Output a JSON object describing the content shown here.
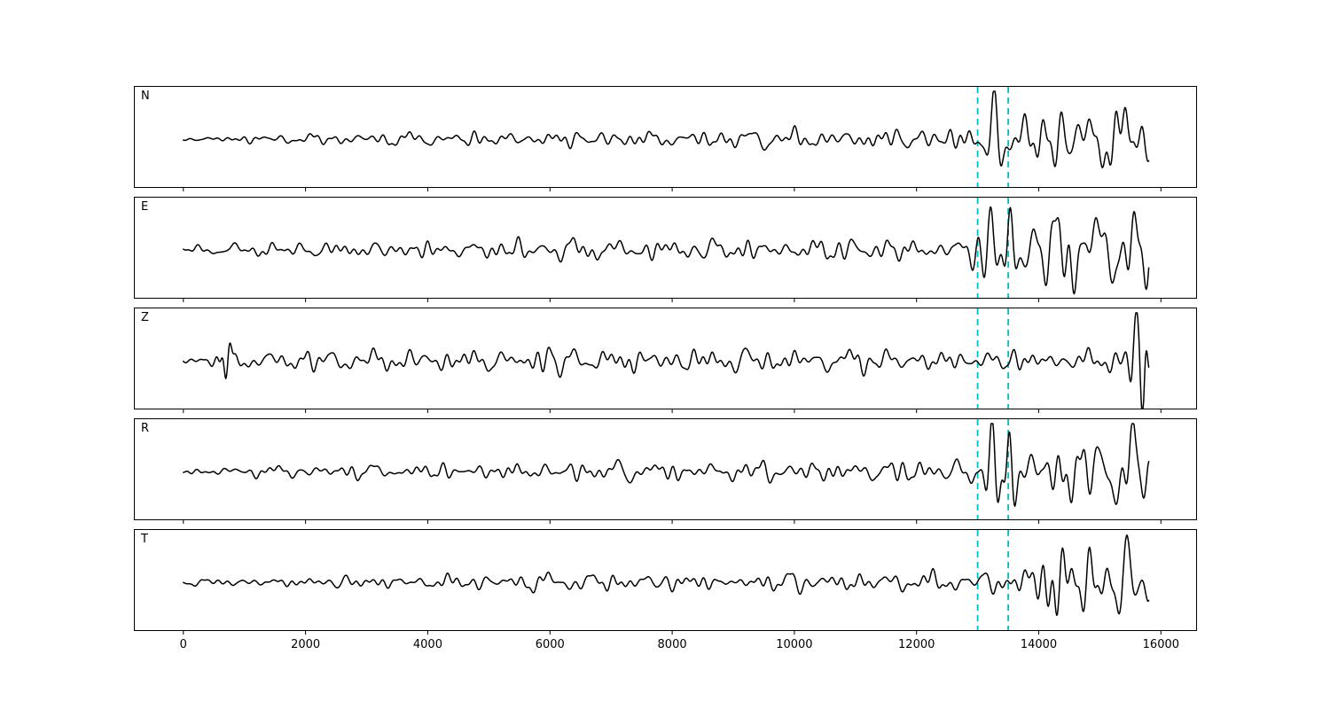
{
  "figure": {
    "background_color": "#ffffff",
    "trace_color": "#000000",
    "vline_color": "#00bfbf",
    "border_color": "#000000"
  },
  "chart_data": {
    "type": "line",
    "title": "",
    "xlabel": "",
    "ylabel": "",
    "description": "Five stacked seismogram component traces (N, E, Z, R, T) with two dashed cyan pick lines at x=13000 and x=13500. Amplitude grows from low background noise to large arrivals after x≈13000.",
    "xlim": [
      -810,
      16590
    ],
    "ylim": [
      -1.15,
      1.15
    ],
    "x_ticks": [
      0,
      2000,
      4000,
      6000,
      8000,
      10000,
      12000,
      14000,
      16000
    ],
    "vlines": [
      13000,
      13500
    ],
    "trace_range": [
      0,
      15800
    ],
    "noise_periods": [
      150,
      210,
      290,
      400,
      560,
      780
    ],
    "panels": [
      {
        "label": "N",
        "seed": 11,
        "envelope": [
          [
            0,
            0.05
          ],
          [
            1500,
            0.09
          ],
          [
            3500,
            0.12
          ],
          [
            5500,
            0.15
          ],
          [
            7500,
            0.16
          ],
          [
            9500,
            0.17
          ],
          [
            11000,
            0.2
          ],
          [
            12400,
            0.22
          ],
          [
            12900,
            0.28
          ],
          [
            13150,
            0.3
          ],
          [
            13700,
            0.32
          ],
          [
            13950,
            0.55
          ],
          [
            14400,
            0.65
          ],
          [
            15000,
            0.6
          ],
          [
            15500,
            0.65
          ],
          [
            15800,
            0.45
          ]
        ],
        "pulses": [
          [
            13270,
            150,
            1.0
          ],
          [
            14120,
            180,
            0.8
          ],
          [
            14750,
            300,
            0.35
          ],
          [
            15350,
            250,
            0.4
          ]
        ]
      },
      {
        "label": "E",
        "seed": 22,
        "envelope": [
          [
            0,
            0.07
          ],
          [
            1500,
            0.13
          ],
          [
            3500,
            0.17
          ],
          [
            5500,
            0.2
          ],
          [
            7500,
            0.2
          ],
          [
            9500,
            0.2
          ],
          [
            11000,
            0.24
          ],
          [
            12000,
            0.2
          ],
          [
            12800,
            0.22
          ],
          [
            13100,
            0.3
          ],
          [
            13700,
            0.35
          ],
          [
            14000,
            0.55
          ],
          [
            14600,
            0.65
          ],
          [
            15800,
            0.6
          ]
        ],
        "pulses": [
          [
            13210,
            140,
            1.0
          ],
          [
            13530,
            130,
            0.95
          ],
          [
            14120,
            220,
            -0.85
          ],
          [
            15000,
            280,
            0.45
          ],
          [
            15600,
            200,
            0.5
          ]
        ]
      },
      {
        "label": "Z",
        "seed": 33,
        "envelope": [
          [
            0,
            0.1
          ],
          [
            800,
            0.18
          ],
          [
            2500,
            0.2
          ],
          [
            4500,
            0.22
          ],
          [
            6000,
            0.26
          ],
          [
            8000,
            0.24
          ],
          [
            10000,
            0.22
          ],
          [
            12000,
            0.2
          ],
          [
            13500,
            0.2
          ],
          [
            14800,
            0.22
          ],
          [
            15300,
            0.22
          ],
          [
            15800,
            0.28
          ]
        ],
        "pulses": [
          [
            700,
            90,
            -0.45
          ],
          [
            15590,
            120,
            1.0
          ],
          [
            15700,
            90,
            -0.8
          ]
        ]
      },
      {
        "label": "R",
        "seed": 44,
        "envelope": [
          [
            0,
            0.06
          ],
          [
            1500,
            0.11
          ],
          [
            3500,
            0.14
          ],
          [
            5500,
            0.18
          ],
          [
            7500,
            0.18
          ],
          [
            9500,
            0.19
          ],
          [
            11000,
            0.22
          ],
          [
            12300,
            0.22
          ],
          [
            12900,
            0.26
          ],
          [
            13400,
            0.28
          ],
          [
            13900,
            0.35
          ],
          [
            14200,
            0.55
          ],
          [
            14800,
            0.6
          ],
          [
            15500,
            0.62
          ],
          [
            15800,
            0.45
          ]
        ],
        "pulses": [
          [
            13230,
            140,
            1.05
          ],
          [
            13520,
            120,
            0.85
          ],
          [
            15050,
            280,
            0.45
          ],
          [
            15550,
            200,
            0.45
          ]
        ]
      },
      {
        "label": "T",
        "seed": 55,
        "envelope": [
          [
            0,
            0.05
          ],
          [
            1500,
            0.09
          ],
          [
            3500,
            0.13
          ],
          [
            5500,
            0.16
          ],
          [
            7500,
            0.17
          ],
          [
            9500,
            0.17
          ],
          [
            11500,
            0.19
          ],
          [
            13000,
            0.2
          ],
          [
            13600,
            0.22
          ],
          [
            13900,
            0.3
          ],
          [
            14050,
            0.5
          ],
          [
            14550,
            0.6
          ],
          [
            15100,
            0.5
          ],
          [
            15800,
            0.45
          ]
        ],
        "pulses": [
          [
            14080,
            150,
            1.0
          ],
          [
            14300,
            140,
            -0.9
          ],
          [
            14850,
            220,
            0.45
          ],
          [
            15450,
            220,
            0.45
          ]
        ]
      }
    ]
  }
}
